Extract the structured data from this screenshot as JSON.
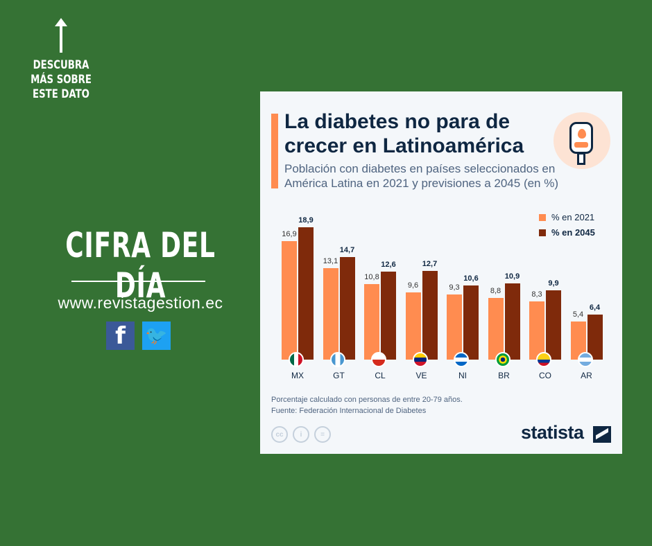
{
  "promo": {
    "more_label": "DESCUBRA MÁS SOBRE ESTE DATO",
    "headline": "CIFRA DEL DÍA",
    "url": "www.revistagestion.ec",
    "facebook_glyph": "f",
    "twitter_glyph": "🐦"
  },
  "colors": {
    "background": "#357234",
    "series_2021": "#ff8c50",
    "series_2045": "#7f2a0b",
    "title": "#0f2742"
  },
  "chart_data": {
    "type": "bar",
    "title": "La diabetes no para de crecer en Latinoamérica",
    "subtitle": "Población con diabetes en países seleccionados en América Latina en 2021 y previsiones a 2045 (en %)",
    "categories": [
      "MX",
      "GT",
      "CL",
      "VE",
      "NI",
      "BR",
      "CO",
      "AR"
    ],
    "series": [
      {
        "name": "% en 2021",
        "values": [
          16.9,
          13.1,
          10.8,
          9.6,
          9.3,
          8.8,
          8.3,
          5.4
        ],
        "labels": [
          "16,9",
          "13,1",
          "10,8",
          "9,6",
          "9,3",
          "8,8",
          "8,3",
          "5,4"
        ]
      },
      {
        "name": "% en 2045",
        "values": [
          18.9,
          14.7,
          12.6,
          12.7,
          10.6,
          10.9,
          9.9,
          6.4
        ],
        "labels": [
          "18,9",
          "14,7",
          "12,6",
          "12,7",
          "10,6",
          "10,9",
          "9,9",
          "6,4"
        ]
      }
    ],
    "ylim": [
      0,
      20
    ],
    "legend": "top-right",
    "grid": false,
    "note": "Porcentaje calculado con personas de entre 20-79 años.",
    "source": "Fuente: Federación Internacional de Diabetes"
  },
  "footer": {
    "brand": "statista",
    "cc_icons": [
      "cc",
      "i",
      "="
    ]
  }
}
